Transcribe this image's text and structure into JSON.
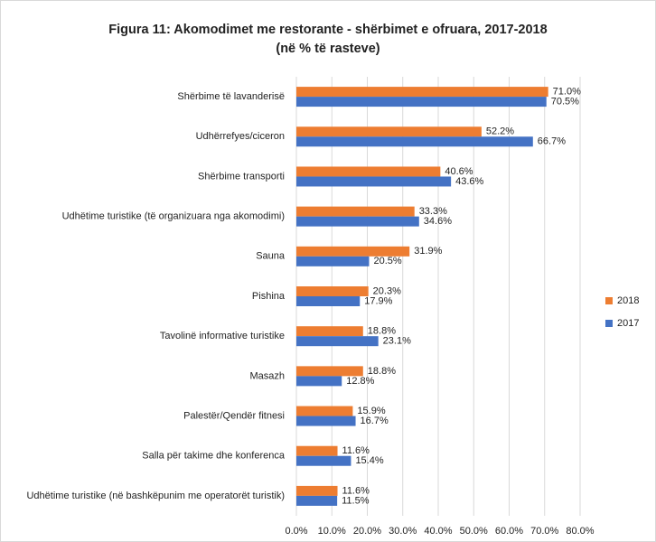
{
  "chart_data": {
    "type": "bar",
    "orientation": "horizontal",
    "title": "Figura 11: Akomodimet me restorante - shërbimet e ofruara, 2017-2018",
    "subtitle": "(në % të rasteve)",
    "categories": [
      "Shërbime të lavanderisë",
      "Udhërrefyes/ciceron",
      "Shërbime transporti",
      "Udhëtime turistike (të organizuara nga akomodimi)",
      "Sauna",
      "Pishina",
      "Tavolinë informative turistike",
      "Masazh",
      "Palestër/Qendër fitnesi",
      "Salla për takime dhe konferenca",
      "Udhëtime turistike  (në bashkëpunim me operatorët turistik)"
    ],
    "series": [
      {
        "name": "2018",
        "color": "#ed7d31",
        "values": [
          71.0,
          52.2,
          40.6,
          33.3,
          31.9,
          20.3,
          18.8,
          18.8,
          15.9,
          11.6,
          11.6
        ],
        "value_labels": [
          "71.0%",
          "52.2%",
          "40.6%",
          "33.3%",
          "31.9%",
          "20.3%",
          "18.8%",
          "18.8%",
          "15.9%",
          "11.6%",
          "11.6%"
        ]
      },
      {
        "name": "2017",
        "color": "#4472c4",
        "values": [
          70.5,
          66.7,
          43.6,
          34.6,
          20.5,
          17.9,
          23.1,
          12.8,
          16.7,
          15.4,
          11.5
        ],
        "value_labels": [
          "70.5%",
          "66.7%",
          "43.6%",
          "34.6%",
          "20.5%",
          "17.9%",
          "23.1%",
          "12.8%",
          "16.7%",
          "15.4%",
          "11.5%"
        ]
      }
    ],
    "xlim": [
      0,
      80
    ],
    "xticks": [
      {
        "value": 0,
        "label": "0.0%"
      },
      {
        "value": 10,
        "label": "10.0%"
      },
      {
        "value": 20,
        "label": "20.0%"
      },
      {
        "value": 30,
        "label": "30.0%"
      },
      {
        "value": 40,
        "label": "40.0%"
      },
      {
        "value": 50,
        "label": "50.0%"
      },
      {
        "value": 60,
        "label": "60.0%"
      },
      {
        "value": 70,
        "label": "70.0%"
      },
      {
        "value": 80,
        "label": "80.0%"
      }
    ],
    "grid": true,
    "legend": "right"
  }
}
